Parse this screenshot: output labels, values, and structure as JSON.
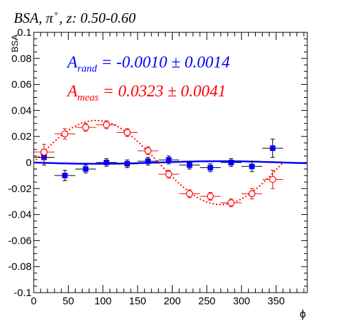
{
  "chart_data": {
    "type": "scatter",
    "title": {
      "prefix": "BSA, π",
      "superscript": "+",
      "suffix": ", z: 0.50-0.60"
    },
    "xlabel": "ϕ",
    "ylabel": "BSA",
    "xlim": [
      0,
      395
    ],
    "ylim": [
      -0.1,
      0.1
    ],
    "xticks": [
      0,
      50,
      100,
      150,
      200,
      250,
      300,
      350
    ],
    "yticks": [
      -0.1,
      -0.08,
      -0.06,
      -0.04,
      -0.02,
      0,
      0.02,
      0.04,
      0.06,
      0.08,
      0.1
    ],
    "ytick_labels": [
      "-0.1",
      "-0.08",
      "-0.06",
      "-0.04",
      "-0.02",
      "0",
      "0.02",
      "0.04",
      "0.06",
      "0.08",
      "0.1"
    ],
    "grid": false,
    "annotations": [
      {
        "symbol": "A",
        "subscript": "rand",
        "text": " = -0.0010 ± 0.0014",
        "color": "#0000ff"
      },
      {
        "symbol": "A",
        "subscript": "meas",
        "text": " = 0.0323 ± 0.0041",
        "color": "#ff0000"
      }
    ],
    "series": [
      {
        "color": "#0000ff",
        "marker": "filled-square",
        "x": [
          15,
          45,
          75,
          105,
          135,
          165,
          195,
          225,
          255,
          285,
          315,
          345
        ],
        "y": [
          0.004,
          -0.01,
          -0.005,
          0.0,
          -0.001,
          0.001,
          0.002,
          -0.002,
          -0.004,
          0.0,
          -0.003,
          0.011
        ],
        "yerr": [
          0.006,
          0.004,
          0.003,
          0.003,
          0.003,
          0.003,
          0.003,
          0.003,
          0.003,
          0.003,
          0.004,
          0.007
        ],
        "xerr": 15,
        "fit": {
          "amplitude": -0.001,
          "x_range": [
            0,
            395
          ]
        }
      },
      {
        "color": "#ff0000",
        "marker": "open-circle",
        "x": [
          15,
          45,
          75,
          105,
          135,
          165,
          195,
          225,
          255,
          285,
          315,
          345
        ],
        "y": [
          0.008,
          0.022,
          0.027,
          0.029,
          0.023,
          0.009,
          -0.009,
          -0.024,
          -0.026,
          -0.031,
          -0.024,
          -0.013
        ],
        "yerr": [
          0.006,
          0.004,
          0.003,
          0.003,
          0.003,
          0.003,
          0.003,
          0.003,
          0.003,
          0.003,
          0.004,
          0.007
        ],
        "xerr": 15,
        "fit": {
          "amplitude": 0.0323,
          "x_range": [
            0,
            360
          ]
        }
      }
    ]
  }
}
